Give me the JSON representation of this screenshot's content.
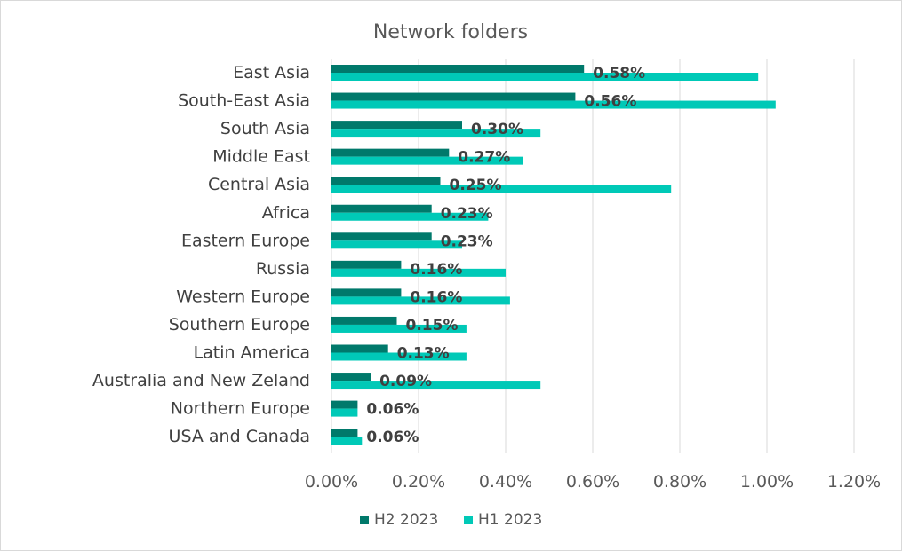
{
  "chart_data": {
    "type": "bar",
    "orientation": "horizontal",
    "title": "Network folders",
    "categories": [
      "East Asia",
      "South-East Asia",
      "South Asia",
      "Middle East",
      "Central Asia",
      "Africa",
      "Eastern Europe",
      "Russia",
      "Western Europe",
      "Southern Europe",
      "Latin America",
      "Australia and New Zeland",
      "Northern Europe",
      "USA and Canada"
    ],
    "series": [
      {
        "name": "H2 2023",
        "color": "#00796b",
        "values": [
          0.58,
          0.56,
          0.3,
          0.27,
          0.25,
          0.23,
          0.23,
          0.16,
          0.16,
          0.15,
          0.13,
          0.09,
          0.06,
          0.06
        ],
        "labels": [
          "0.58%",
          "0.56%",
          "0.30%",
          "0.27%",
          "0.25%",
          "0.23%",
          "0.23%",
          "0.16%",
          "0.16%",
          "0.15%",
          "0.13%",
          "0.09%",
          "0.06%",
          "0.06%"
        ]
      },
      {
        "name": "H1 2023",
        "color": "#00c9b7",
        "values": [
          0.98,
          1.02,
          0.48,
          0.44,
          0.78,
          0.36,
          0.3,
          0.4,
          0.41,
          0.31,
          0.31,
          0.48,
          0.06,
          0.07
        ]
      }
    ],
    "xlim": [
      0,
      1.2
    ],
    "ticks": [
      {
        "value": 0.0,
        "label": "0.00%"
      },
      {
        "value": 0.2,
        "label": "0.20%"
      },
      {
        "value": 0.4,
        "label": "0.40%"
      },
      {
        "value": 0.6,
        "label": "0.60%"
      },
      {
        "value": 0.8,
        "label": "0.80%"
      },
      {
        "value": 1.0,
        "label": "1.00%"
      },
      {
        "value": 1.2,
        "label": "1.20%"
      }
    ],
    "grid": true,
    "legend_position": "bottom"
  }
}
